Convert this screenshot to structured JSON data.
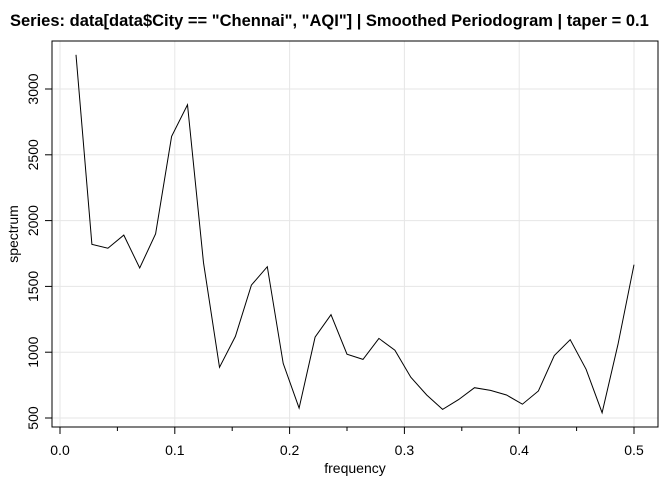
{
  "chart_data": {
    "type": "line",
    "title": "Series: data[data$City == \"Chennai\", \"AQI\"]  |  Smoothed Periodogram  |  taper = 0.1",
    "xlabel": "frequency",
    "ylabel": "spectrum",
    "xlim": [
      0,
      0.5
    ],
    "ylim": [
      500,
      3300
    ],
    "grid": true,
    "x_ticks": [
      0.0,
      0.1,
      0.2,
      0.3,
      0.4,
      0.5
    ],
    "x_tick_labels": [
      "0.0",
      "0.1",
      "0.2",
      "0.3",
      "0.4",
      "0.5"
    ],
    "y_ticks": [
      500,
      1000,
      1500,
      2000,
      2500,
      3000
    ],
    "y_tick_labels": [
      "500",
      "1000",
      "1500",
      "2000",
      "2500",
      "3000"
    ],
    "series": [
      {
        "x": [
          0.0139,
          0.0278,
          0.0417,
          0.0556,
          0.0694,
          0.0833,
          0.0972,
          0.1111,
          0.125,
          0.1389,
          0.1528,
          0.1667,
          0.1806,
          0.1944,
          0.2083,
          0.2222,
          0.2361,
          0.25,
          0.2639,
          0.2778,
          0.2917,
          0.3056,
          0.3194,
          0.3333,
          0.3472,
          0.3611,
          0.375,
          0.3889,
          0.4028,
          0.4167,
          0.4306,
          0.4444,
          0.4583,
          0.4722,
          0.4861,
          0.5
        ],
        "values": [
          3260,
          1820,
          1790,
          1890,
          1640,
          1900,
          2640,
          2880,
          1680,
          885,
          1120,
          1510,
          1650,
          915,
          575,
          1115,
          1285,
          985,
          945,
          1105,
          1015,
          810,
          675,
          565,
          640,
          730,
          710,
          675,
          605,
          705,
          975,
          1095,
          870,
          540,
          1060,
          1665
        ]
      }
    ]
  }
}
